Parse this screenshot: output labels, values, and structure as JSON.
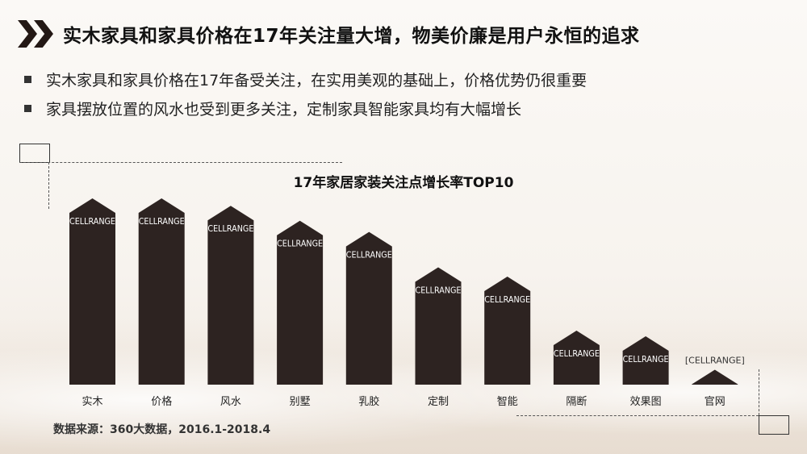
{
  "header": {
    "title": "实木家具和家具价格在17年关注量大增，物美价廉是用户永恒的追求",
    "icon": "double-chevron-icon"
  },
  "bullets": [
    "实木家具和家具价格在17年备受关注，在实用美观的基础上，价格优势仍很重要",
    "家具摆放位置的风水也受到更多关注，定制家具智能家具均有大幅增长"
  ],
  "footer": {
    "source": "数据来源：360大数据，2016.1-2018.4"
  },
  "colors": {
    "bar": "#2d2321",
    "label_on_bar": "#ffffff",
    "label_above": "#333333"
  },
  "chart_data": {
    "type": "bar",
    "title": "17年家居家装关注点增长率TOP10",
    "categories": [
      "实木",
      "价格",
      "风水",
      "别墅",
      "乳胶",
      "定制",
      "智能",
      "隔断",
      "效果图",
      "官网"
    ],
    "values": [
      100,
      100,
      96,
      88,
      82,
      63,
      58,
      29,
      26,
      8
    ],
    "data_labels": [
      "CELLRANGE",
      "CELLRANGE",
      "CELLRANGE",
      "CELLRANGE",
      "CELLRANGE",
      "CELLRANGE",
      "CELLRANGE",
      "CELLRANGE",
      "CELLRANGE",
      "[CELLRANGE]"
    ],
    "xlabel": "",
    "ylabel": "",
    "ylim": [
      0,
      100
    ],
    "grid": false,
    "legend": "none"
  }
}
